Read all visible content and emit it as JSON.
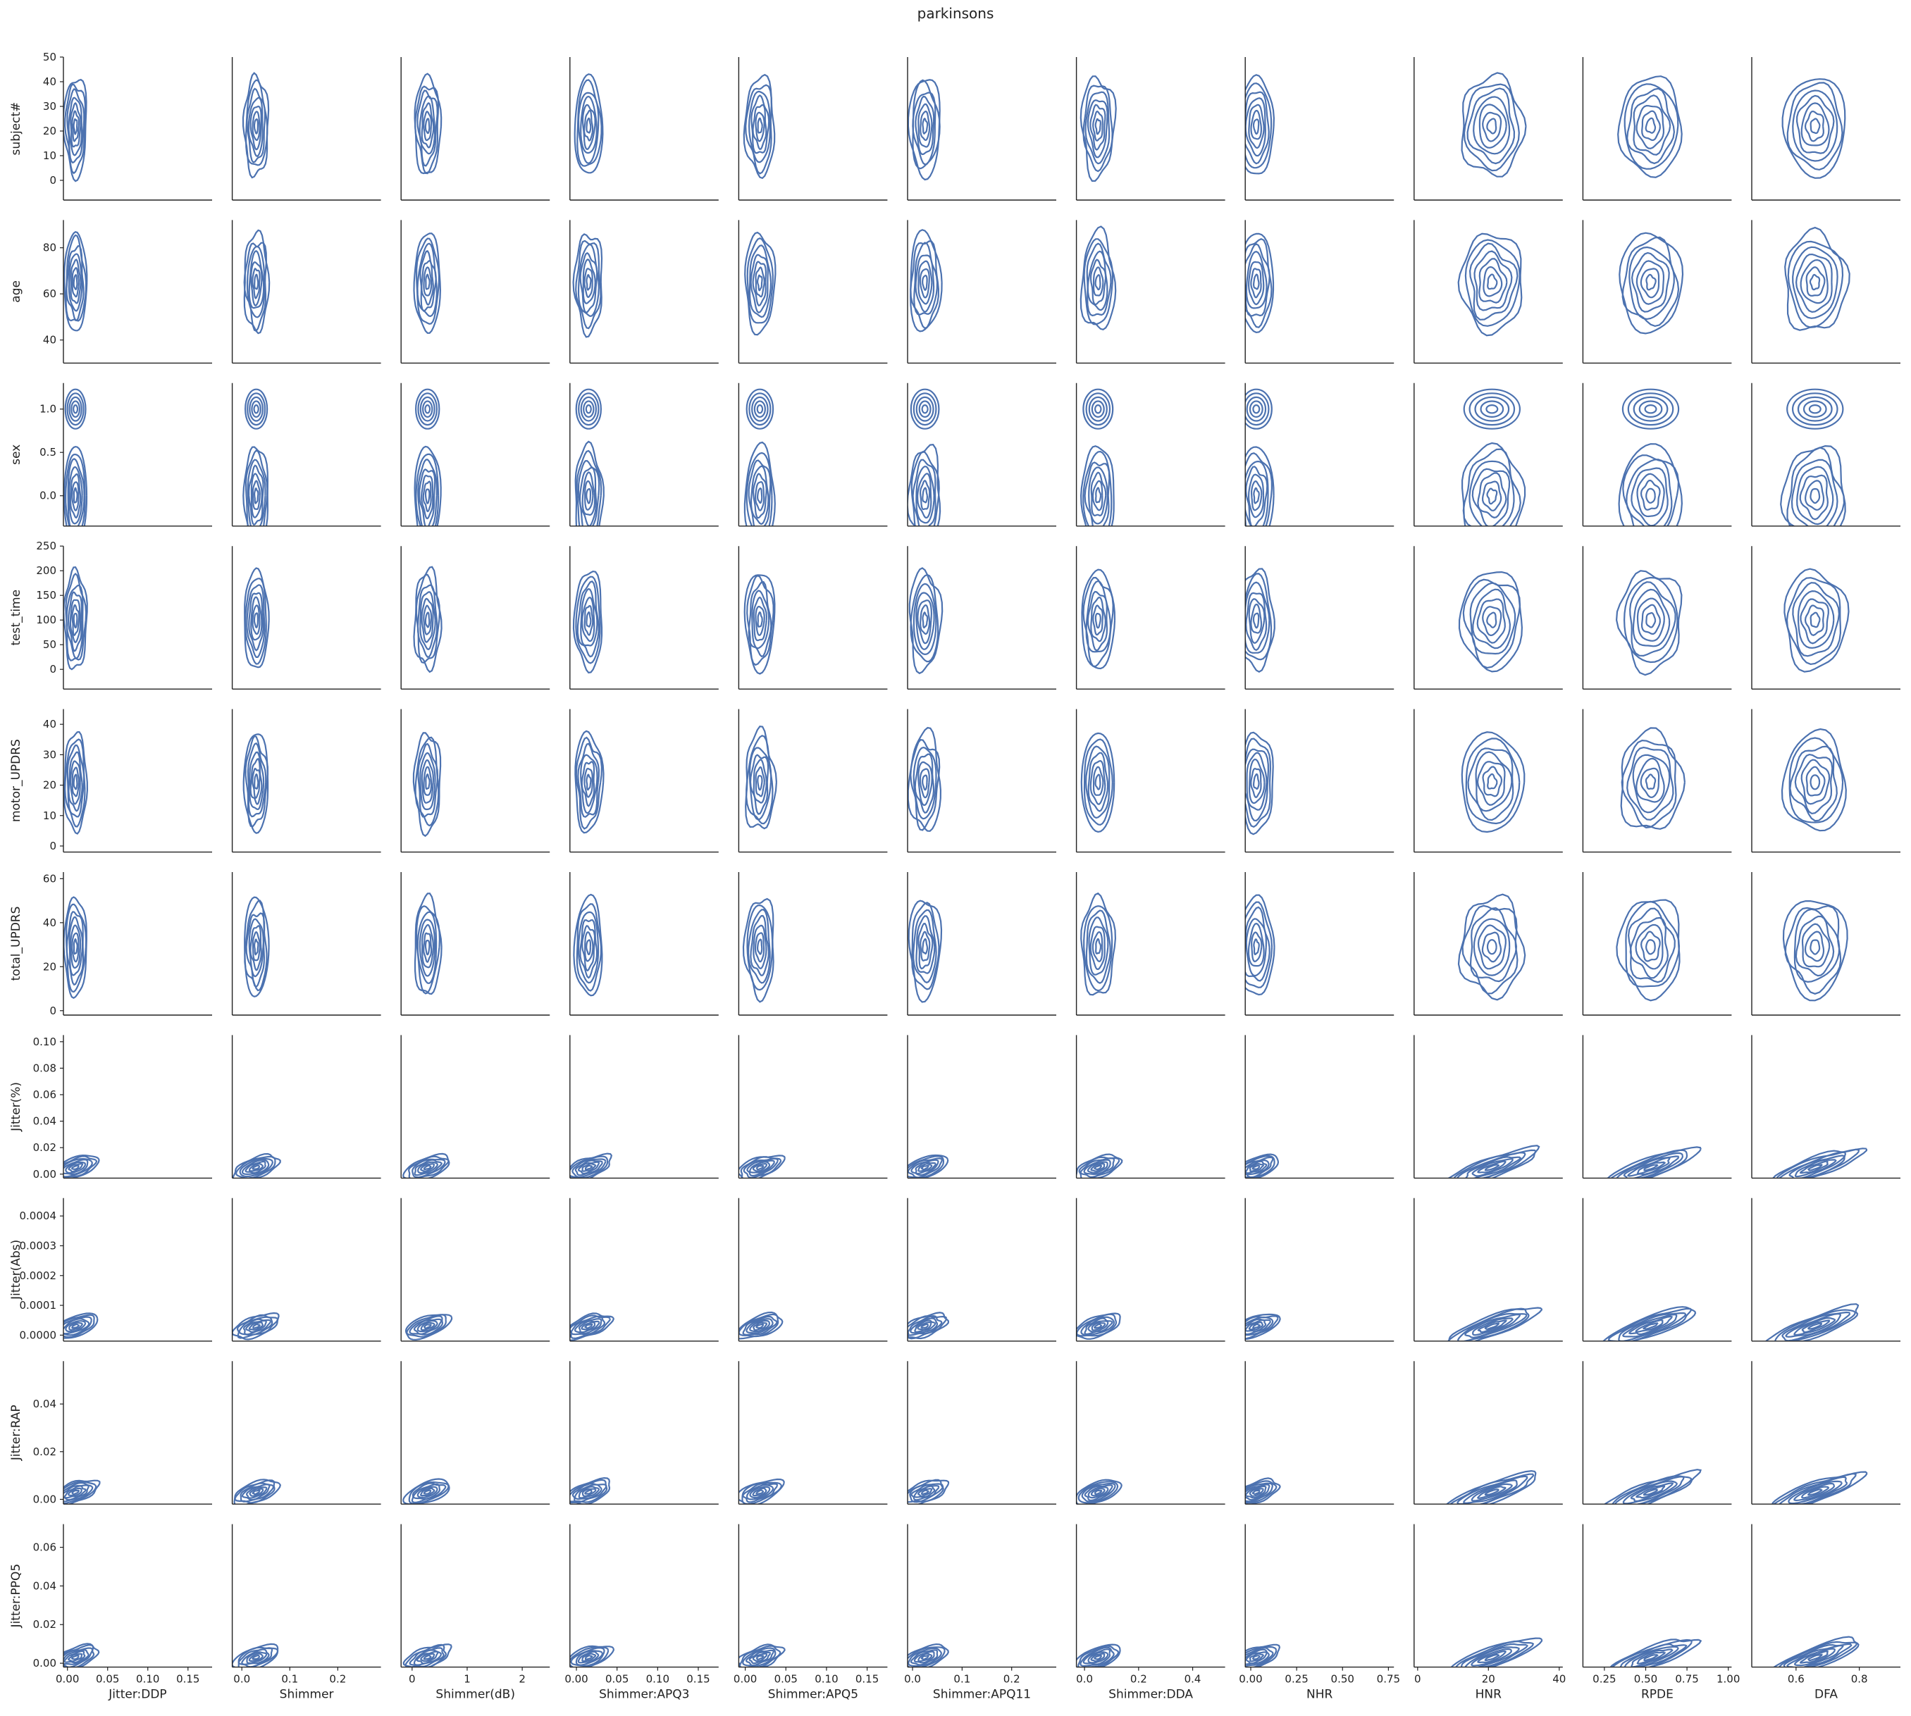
{
  "chart_data": {
    "type": "kde-contour-grid",
    "title": "parkinsons",
    "line_color": "#4c72b0",
    "grid": false,
    "legend": "none",
    "columns": [
      {
        "name": "Jitter:DDP",
        "xlim": [
          -0.005,
          0.18
        ],
        "ticks": [
          0.0,
          0.05,
          0.1,
          0.15
        ],
        "tick_labels": [
          "0.00",
          "0.05",
          "0.10",
          "0.15"
        ],
        "mode": 0.01
      },
      {
        "name": "Shimmer",
        "xlim": [
          -0.02,
          0.29
        ],
        "ticks": [
          0.0,
          0.1,
          0.2
        ],
        "tick_labels": [
          "0.0",
          "0.1",
          "0.2"
        ],
        "mode": 0.03
      },
      {
        "name": "Shimmer(dB)",
        "xlim": [
          -0.2,
          2.5
        ],
        "ticks": [
          0,
          1,
          2
        ],
        "tick_labels": [
          "0",
          "1",
          "2"
        ],
        "mode": 0.28
      },
      {
        "name": "Shimmer:APQ3",
        "xlim": [
          -0.008,
          0.175
        ],
        "ticks": [
          0.0,
          0.05,
          0.1,
          0.15
        ],
        "tick_labels": [
          "0.00",
          "0.05",
          "0.10",
          "0.15"
        ],
        "mode": 0.015
      },
      {
        "name": "Shimmer:APQ5",
        "xlim": [
          -0.008,
          0.175
        ],
        "ticks": [
          0.0,
          0.05,
          0.1,
          0.15
        ],
        "tick_labels": [
          "0.00",
          "0.05",
          "0.10",
          "0.15"
        ],
        "mode": 0.018
      },
      {
        "name": "Shimmer:APQ11",
        "xlim": [
          -0.01,
          0.29
        ],
        "ticks": [
          0.0,
          0.1,
          0.2
        ],
        "tick_labels": [
          "0.0",
          "0.1",
          "0.2"
        ],
        "mode": 0.025
      },
      {
        "name": "Shimmer:DDA",
        "xlim": [
          -0.03,
          0.52
        ],
        "ticks": [
          0.0,
          0.2,
          0.4
        ],
        "tick_labels": [
          "0.0",
          "0.2",
          "0.4"
        ],
        "mode": 0.05
      },
      {
        "name": "NHR",
        "xlim": [
          -0.03,
          0.78
        ],
        "ticks": [
          0.0,
          0.25,
          0.5,
          0.75
        ],
        "tick_labels": [
          "0.00",
          "0.25",
          "0.50",
          "0.75"
        ],
        "mode": 0.03
      },
      {
        "name": "HNR",
        "xlim": [
          -1,
          41
        ],
        "ticks": [
          0,
          20,
          40
        ],
        "tick_labels": [
          "0",
          "20",
          "40"
        ],
        "mode": 21
      },
      {
        "name": "RPDE",
        "xlim": [
          0.12,
          1.02
        ],
        "ticks": [
          0.25,
          0.5,
          0.75,
          1.0
        ],
        "tick_labels": [
          "0.25",
          "0.50",
          "0.75",
          "1.00"
        ],
        "mode": 0.53
      },
      {
        "name": "DFA",
        "xlim": [
          0.46,
          0.93
        ],
        "ticks": [
          0.6,
          0.8
        ],
        "tick_labels": [
          "0.6",
          "0.8"
        ],
        "mode": 0.66
      }
    ],
    "rows": [
      {
        "name": "subject#",
        "ylim": [
          -8,
          50
        ],
        "ticks": [
          0,
          10,
          20,
          30,
          40,
          50
        ],
        "tick_labels": [
          "0",
          "10",
          "20",
          "30",
          "40",
          "50"
        ],
        "mode": 22
      },
      {
        "name": "age",
        "ylim": [
          30,
          92
        ],
        "ticks": [
          40,
          60,
          80
        ],
        "tick_labels": [
          "40",
          "60",
          "80"
        ],
        "mode": 65
      },
      {
        "name": "sex",
        "ylim": [
          -0.35,
          1.3
        ],
        "ticks": [
          0.0,
          0.5,
          1.0
        ],
        "tick_labels": [
          "0.0",
          "0.5",
          "1.0"
        ],
        "mode": 0.0
      },
      {
        "name": "test_time",
        "ylim": [
          -40,
          250
        ],
        "ticks": [
          0,
          50,
          100,
          150,
          200,
          250
        ],
        "tick_labels": [
          "0",
          "50",
          "100",
          "150",
          "200",
          "250"
        ],
        "mode": 100
      },
      {
        "name": "motor_UPDRS",
        "ylim": [
          -2,
          45
        ],
        "ticks": [
          0,
          10,
          20,
          30,
          40
        ],
        "tick_labels": [
          "0",
          "10",
          "20",
          "30",
          "40"
        ],
        "mode": 21
      },
      {
        "name": "total_UPDRS",
        "ylim": [
          -2,
          63
        ],
        "ticks": [
          0,
          20,
          40,
          60
        ],
        "tick_labels": [
          "0",
          "20",
          "40",
          "60"
        ],
        "mode": 29
      },
      {
        "name": "Jitter(%)",
        "ylim": [
          -0.003,
          0.105
        ],
        "ticks": [
          0.0,
          0.02,
          0.04,
          0.06,
          0.08,
          0.1
        ],
        "tick_labels": [
          "0.00",
          "0.02",
          "0.04",
          "0.06",
          "0.08",
          "0.10"
        ],
        "mode": 0.005
      },
      {
        "name": "Jitter(Abs)",
        "ylim": [
          -2e-05,
          0.00046
        ],
        "ticks": [
          0.0,
          0.0001,
          0.0002,
          0.0003,
          0.0004
        ],
        "tick_labels": [
          "0.0000",
          "0.0001",
          "0.0002",
          "0.0003",
          "0.0004"
        ],
        "mode": 3e-05
      },
      {
        "name": "Jitter:RAP",
        "ylim": [
          -0.002,
          0.058
        ],
        "ticks": [
          0.0,
          0.02,
          0.04
        ],
        "tick_labels": [
          "0.00",
          "0.02",
          "0.04"
        ],
        "mode": 0.003
      },
      {
        "name": "Jitter:PPQ5",
        "ylim": [
          -0.002,
          0.072
        ],
        "ticks": [
          0.0,
          0.02,
          0.04,
          0.06
        ],
        "tick_labels": [
          "0.00",
          "0.02",
          "0.04",
          "0.06"
        ],
        "mode": 0.003
      }
    ]
  }
}
